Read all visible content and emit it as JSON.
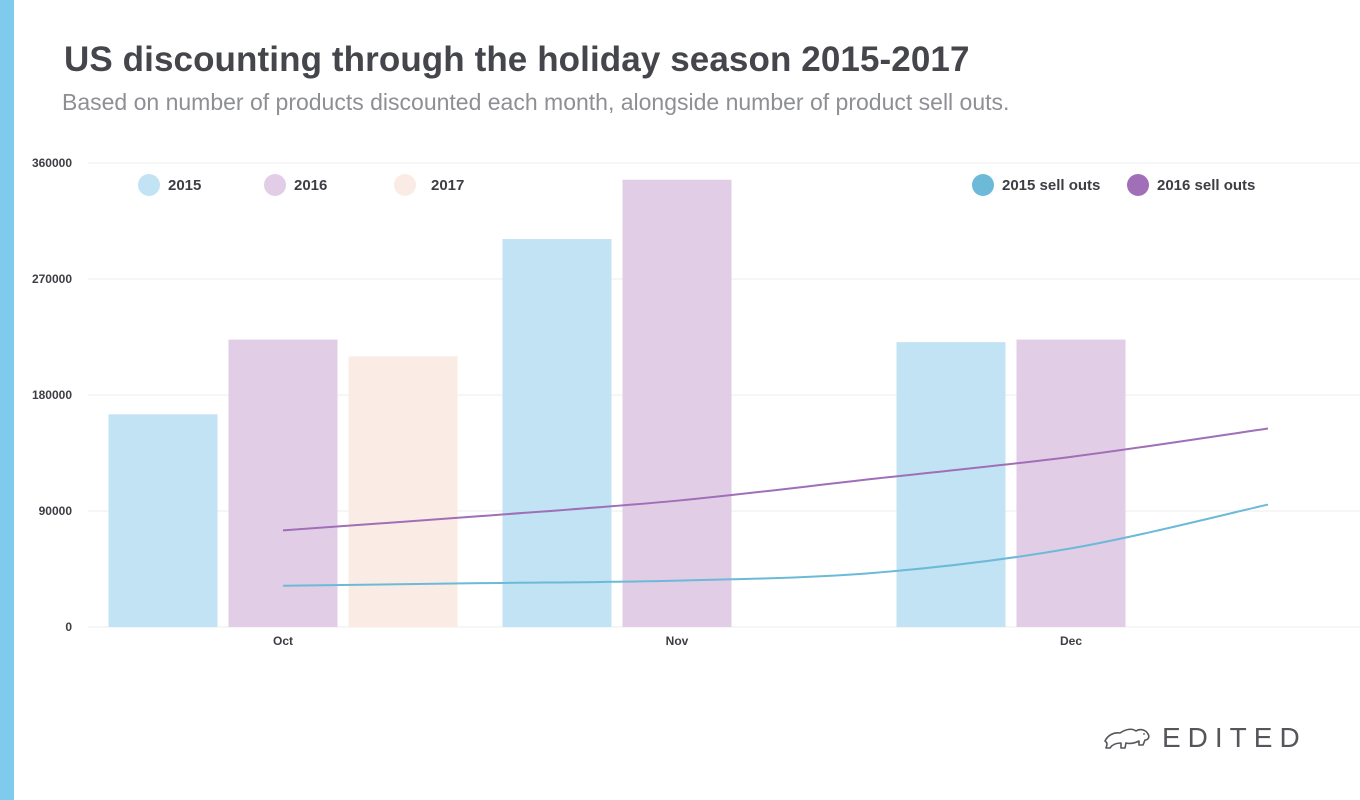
{
  "title": "US discounting through the holiday season 2015-2017",
  "subtitle": "Based on number of products discounted each month, alongside number of product sell outs.",
  "brand": {
    "name": "EDITED",
    "icon": "polar-bear-icon"
  },
  "colors": {
    "accent": "#7ecbee",
    "grid": "#ececee",
    "s2015": "#c1e3f3",
    "s2016": "#e2cde7",
    "s2017": "#faece4",
    "sell2015": "#6cbad8",
    "sell2016": "#a06fb7"
  },
  "chart_data": {
    "type": "bar",
    "title": "US discounting through the holiday season 2015-2017",
    "xlabel": "",
    "ylabel": "",
    "ylim": [
      0,
      360000
    ],
    "yticks": [
      0,
      90000,
      180000,
      270000,
      360000
    ],
    "ytick_labels": [
      "0",
      "90000",
      "180000",
      "270000",
      "360000"
    ],
    "categories": [
      "Oct",
      "Nov",
      "Dec"
    ],
    "grid": true,
    "legend_position": "top",
    "series": [
      {
        "name": "2015",
        "kind": "bar",
        "color": "#c1e3f3",
        "values": [
          165000,
          301000,
          221000
        ]
      },
      {
        "name": "2016",
        "kind": "bar",
        "color": "#e2cde7",
        "values": [
          223000,
          347000,
          223000
        ]
      },
      {
        "name": "2017",
        "kind": "bar",
        "color": "#faece4",
        "values": [
          210000,
          null,
          null
        ]
      }
    ],
    "lines": [
      {
        "name": "2015 sell outs",
        "color": "#6cbad8",
        "x": [
          0,
          0.5,
          1,
          1.5,
          2,
          2.5
        ],
        "values": [
          32000,
          34000,
          36000,
          42000,
          61000,
          95000
        ]
      },
      {
        "name": "2016 sell outs",
        "color": "#a06fb7",
        "x": [
          0,
          0.5,
          1,
          1.5,
          2,
          2.5
        ],
        "values": [
          75000,
          86000,
          98000,
          115000,
          132000,
          154000
        ]
      }
    ]
  }
}
